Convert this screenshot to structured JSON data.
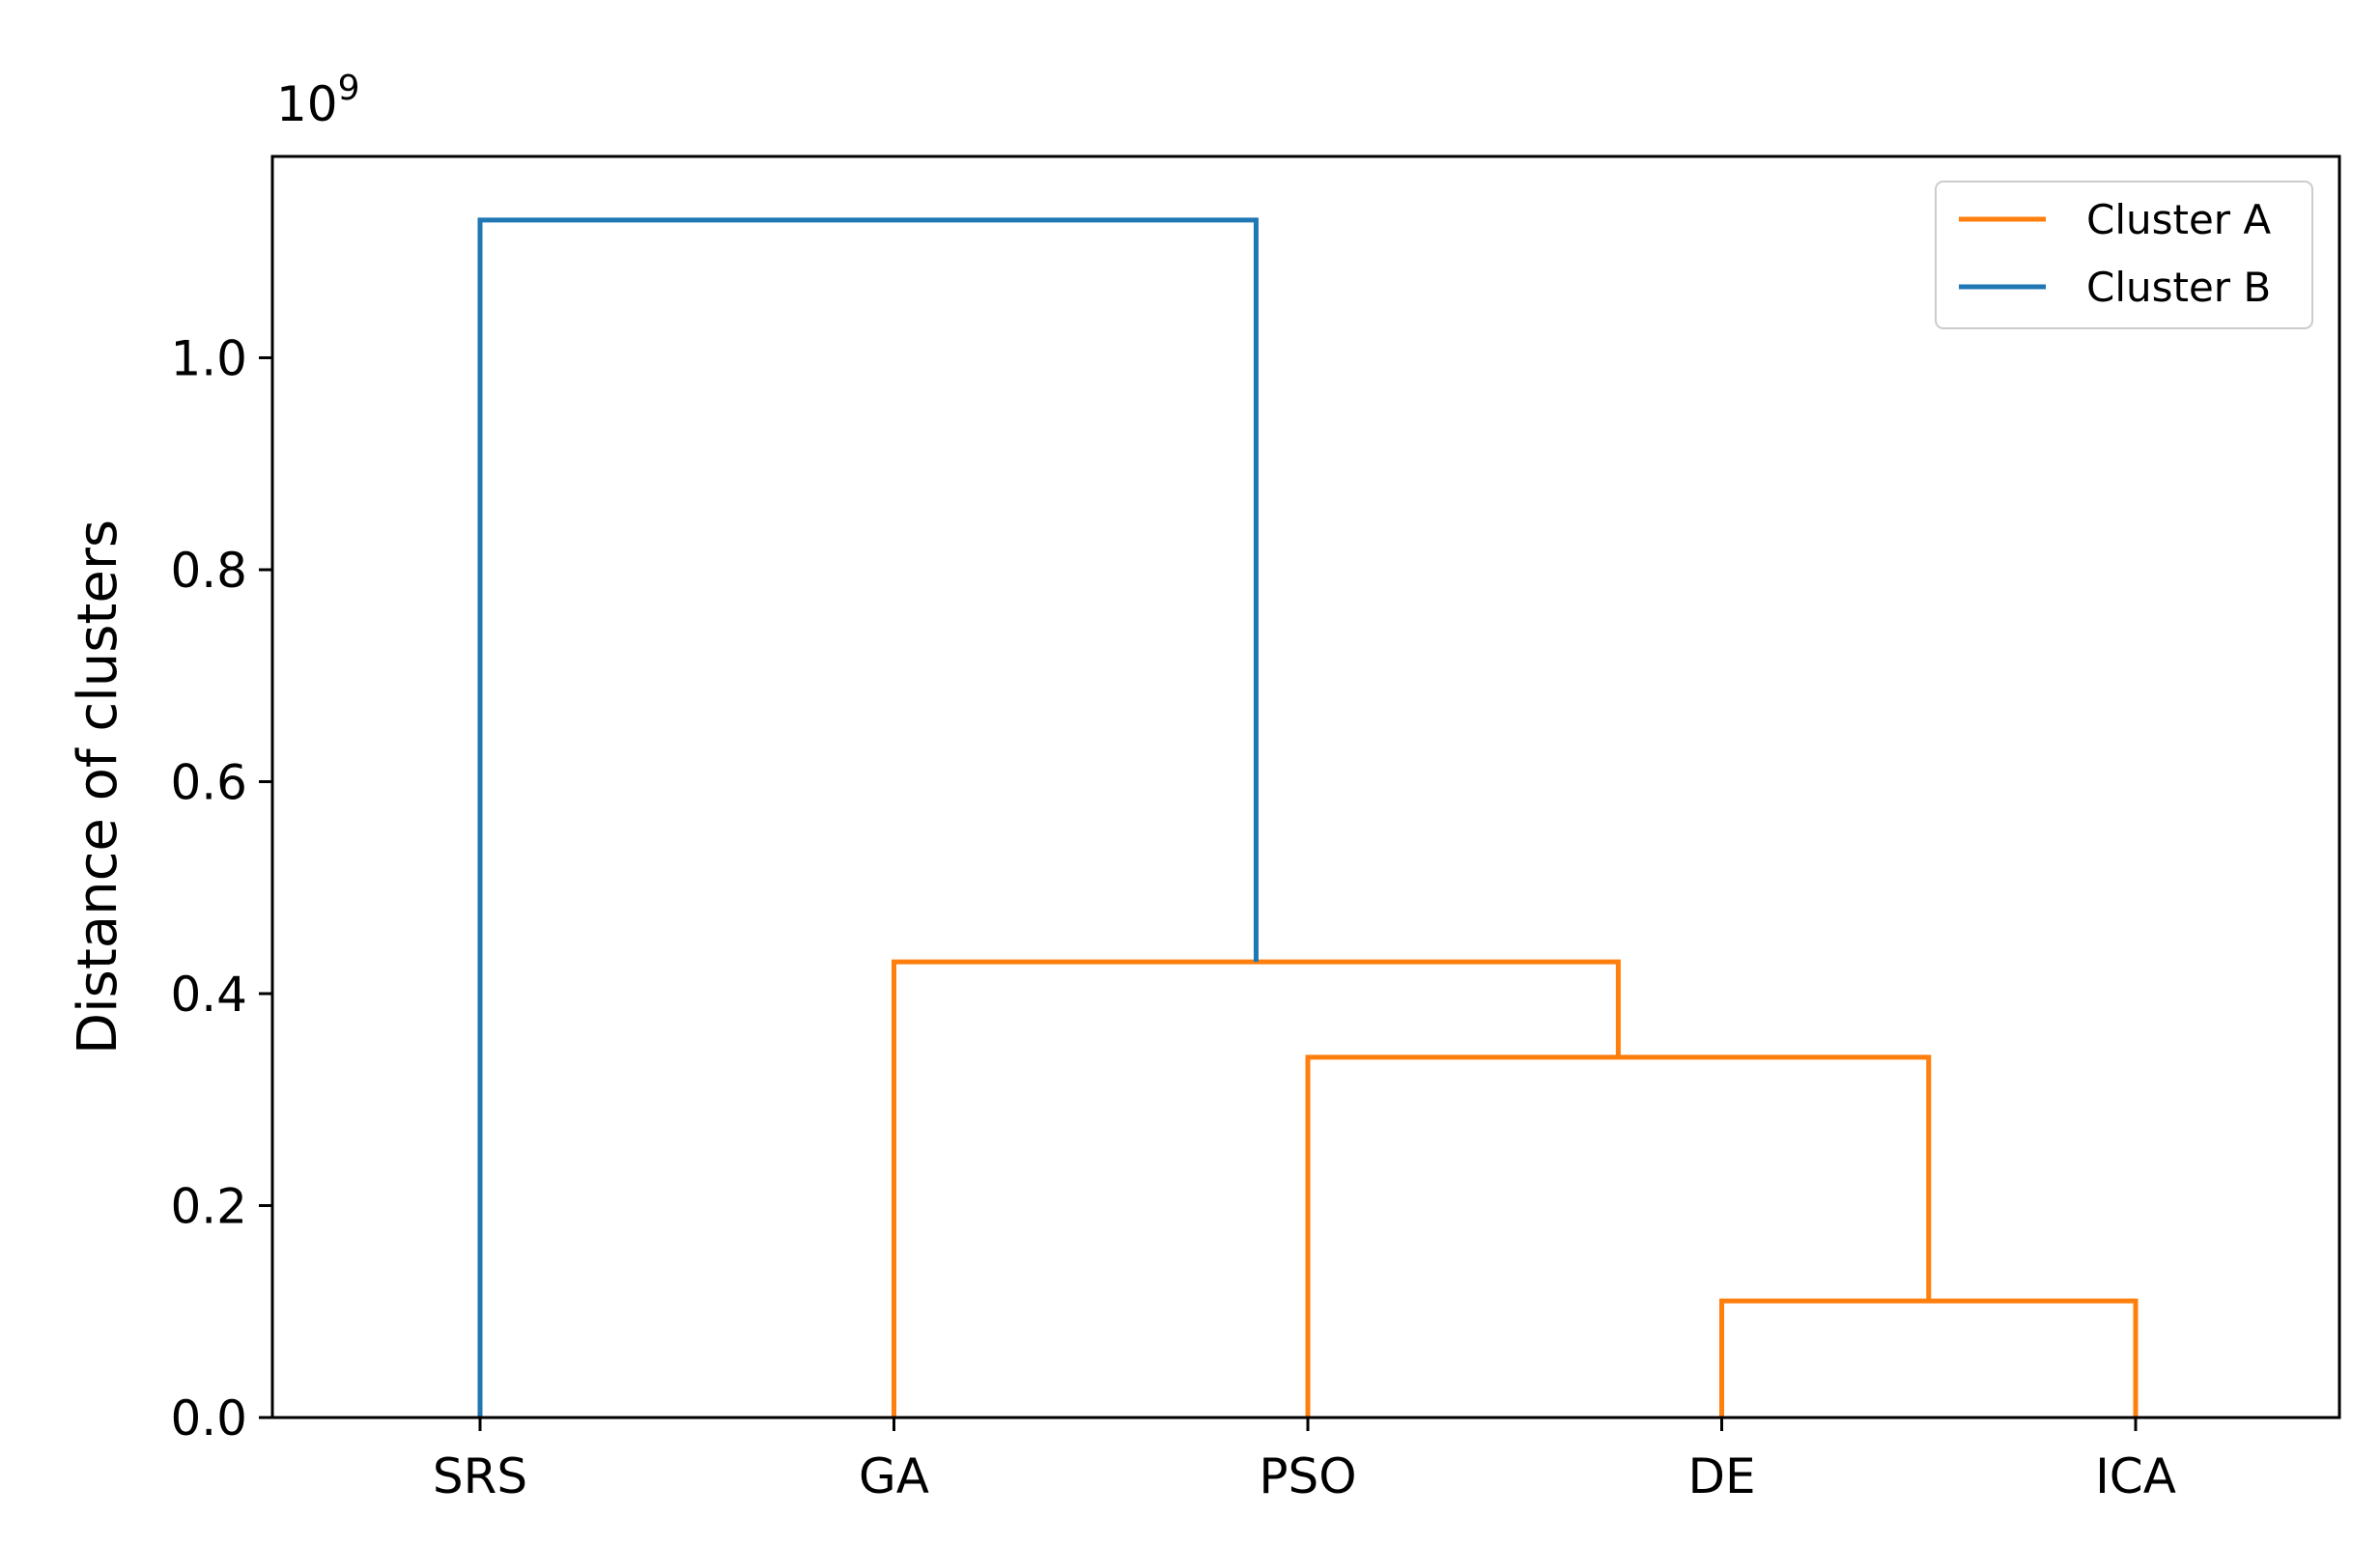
{
  "chart_data": {
    "type": "dendrogram",
    "ylabel": "Distance of clusters",
    "y_scale_label": "10^9",
    "y_scale_base": "10",
    "y_scale_exponent": "9",
    "ylim": [
      0,
      1.19
    ],
    "y_ticks": [
      "0.0",
      "0.2",
      "0.4",
      "0.6",
      "0.8",
      "1.0"
    ],
    "y_tick_values": [
      0.0,
      0.2,
      0.4,
      0.6,
      0.8,
      1.0
    ],
    "leaves": [
      "SRS",
      "GA",
      "PSO",
      "DE",
      "ICA"
    ],
    "links": [
      {
        "from": "DE",
        "to": "ICA",
        "height": 0.11,
        "cluster": "Cluster A"
      },
      {
        "from": "PSO",
        "to": "DE+ICA",
        "height": 0.34,
        "cluster": "Cluster A"
      },
      {
        "from": "GA",
        "to": "PSO+DE+ICA",
        "height": 0.43,
        "cluster": "Cluster A"
      },
      {
        "from": "SRS",
        "to": "GA+PSO+DE+ICA",
        "height": 1.13,
        "cluster": "Cluster B"
      }
    ],
    "legend": {
      "placement": "top-right",
      "entries": [
        {
          "name": "Cluster A",
          "color": "#ff7f0e"
        },
        {
          "name": "Cluster B",
          "color": "#1f77b4"
        }
      ]
    },
    "grid": false
  }
}
